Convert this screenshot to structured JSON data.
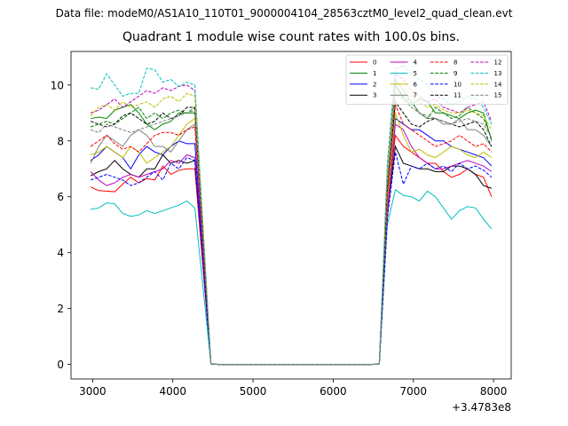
{
  "figure": {
    "suptitle": "Data file: modeM0/AS1A10_110T01_9000004104_28563cztM0_level2_quad_clean.evt"
  },
  "chart_data": {
    "type": "line",
    "title": "Quadrant 1 module wise count rates with 100.0s bins.",
    "xlabel": "",
    "ylabel": "",
    "x_offset_text": "+3.4783e8",
    "xlim": [
      2730,
      8220
    ],
    "ylim": [
      -0.52,
      11.2
    ],
    "xticks": [
      3000,
      4000,
      5000,
      6000,
      7000,
      8000
    ],
    "yticks": [
      0,
      2,
      4,
      6,
      8,
      10
    ],
    "grid": false,
    "legend": {
      "placement": "top-right",
      "ncol": 4
    },
    "x": [
      2975,
      3075,
      3175,
      3275,
      3375,
      3475,
      3575,
      3675,
      3775,
      3875,
      3975,
      4075,
      4175,
      4275,
      4375,
      4475,
      4575,
      4675,
      4775,
      4875,
      4975,
      5075,
      5175,
      5275,
      5375,
      5475,
      5575,
      5675,
      5775,
      5875,
      5975,
      6075,
      6175,
      6275,
      6375,
      6475,
      6575,
      6675,
      6775,
      6875,
      6975,
      7075,
      7175,
      7275,
      7375,
      7475,
      7575,
      7675,
      7775,
      7875,
      7975
    ],
    "series": [
      {
        "name": "0",
        "color": "#ff0000",
        "dash": "solid",
        "values": [
          6.35,
          6.22,
          6.2,
          6.18,
          6.45,
          6.7,
          6.5,
          6.65,
          6.6,
          7.1,
          6.8,
          6.95,
          7.0,
          7.0,
          3.5,
          0.02,
          0,
          0,
          0,
          0,
          0,
          0,
          0,
          0,
          0,
          0,
          0,
          0,
          0,
          0,
          0,
          0,
          0,
          0,
          0,
          0,
          0.02,
          5.5,
          8.2,
          7.8,
          7.6,
          7.4,
          7.2,
          7.2,
          6.9,
          6.7,
          6.8,
          7.0,
          6.8,
          6.7,
          6.0
        ]
      },
      {
        "name": "1",
        "color": "#008000",
        "dash": "solid",
        "values": [
          8.8,
          8.85,
          8.8,
          9.1,
          9.2,
          9.3,
          9.0,
          8.6,
          8.4,
          8.6,
          8.7,
          9.0,
          9.0,
          9.0,
          4.6,
          0.02,
          0,
          0,
          0,
          0,
          0,
          0,
          0,
          0,
          0,
          0,
          0,
          0,
          0,
          0,
          0,
          0,
          0,
          0,
          0,
          0,
          0.02,
          6.2,
          10.0,
          9.5,
          9.3,
          9.5,
          9.4,
          9.0,
          9.0,
          8.9,
          8.8,
          9.0,
          9.1,
          9.0,
          8.0
        ]
      },
      {
        "name": "2",
        "color": "#0000ff",
        "dash": "solid",
        "values": [
          7.3,
          7.5,
          7.8,
          7.6,
          7.4,
          7.0,
          7.5,
          7.8,
          7.6,
          7.5,
          7.8,
          8.0,
          7.9,
          7.9,
          4.0,
          0.02,
          0,
          0,
          0,
          0,
          0,
          0,
          0,
          0,
          0,
          0,
          0,
          0,
          0,
          0,
          0,
          0,
          0,
          0,
          0,
          0,
          0.02,
          5.8,
          8.8,
          8.6,
          8.4,
          8.4,
          8.2,
          8.0,
          8.0,
          7.8,
          7.7,
          7.6,
          7.5,
          7.4,
          7.1
        ]
      },
      {
        "name": "3",
        "color": "#000000",
        "dash": "solid",
        "values": [
          6.75,
          6.9,
          7.0,
          7.3,
          7.0,
          6.8,
          6.7,
          7.0,
          7.0,
          7.5,
          7.2,
          7.3,
          7.2,
          7.3,
          3.7,
          0.02,
          0,
          0,
          0,
          0,
          0,
          0,
          0,
          0,
          0,
          0,
          0,
          0,
          0,
          0,
          0,
          0,
          0,
          0,
          0,
          0,
          0.02,
          5.4,
          7.8,
          7.2,
          7.1,
          7.0,
          7.0,
          6.9,
          6.9,
          7.1,
          7.1,
          7.0,
          6.8,
          6.4,
          6.3
        ]
      },
      {
        "name": "4",
        "color": "#bf00bf",
        "dash": "solid",
        "values": [
          6.9,
          6.6,
          6.4,
          6.5,
          6.7,
          6.8,
          6.7,
          6.8,
          6.9,
          7.0,
          7.3,
          7.2,
          7.5,
          7.4,
          3.8,
          0.02,
          0,
          0,
          0,
          0,
          0,
          0,
          0,
          0,
          0,
          0,
          0,
          0,
          0,
          0,
          0,
          0,
          0,
          0,
          0,
          0,
          0.02,
          5.3,
          8.6,
          8.4,
          7.8,
          7.4,
          7.2,
          7.0,
          7.0,
          7.1,
          7.2,
          7.3,
          7.2,
          7.1,
          6.9
        ]
      },
      {
        "name": "5",
        "color": "#00bfbf",
        "dash": "solid",
        "values": [
          5.55,
          5.6,
          5.78,
          5.75,
          5.4,
          5.3,
          5.35,
          5.5,
          5.4,
          5.5,
          5.6,
          5.7,
          5.85,
          5.6,
          2.8,
          0.02,
          0,
          0,
          0,
          0,
          0,
          0,
          0,
          0,
          0,
          0,
          0,
          0,
          0,
          0,
          0,
          0,
          0,
          0,
          0,
          0,
          0.02,
          5.0,
          6.25,
          6.05,
          6.0,
          5.85,
          6.2,
          6.0,
          5.6,
          5.2,
          5.5,
          5.65,
          5.6,
          5.2,
          4.85
        ]
      },
      {
        "name": "6",
        "color": "#bfbf00",
        "dash": "solid",
        "values": [
          7.5,
          7.6,
          7.8,
          7.6,
          7.4,
          7.8,
          7.6,
          7.2,
          7.4,
          7.6,
          7.8,
          8.2,
          8.6,
          8.8,
          4.5,
          0.02,
          0,
          0,
          0,
          0,
          0,
          0,
          0,
          0,
          0,
          0,
          0,
          0,
          0,
          0,
          0,
          0,
          0,
          0,
          0,
          0,
          0.02,
          5.8,
          9.0,
          8.2,
          7.6,
          7.7,
          7.5,
          7.4,
          7.6,
          7.8,
          7.7,
          7.5,
          7.4,
          7.6,
          7.4
        ]
      },
      {
        "name": "7",
        "color": "#808080",
        "dash": "solid",
        "values": [
          7.2,
          7.8,
          8.2,
          8.0,
          7.8,
          8.2,
          8.4,
          8.2,
          7.8,
          7.8,
          7.6,
          8.0,
          8.4,
          8.6,
          4.4,
          0.02,
          0,
          0,
          0,
          0,
          0,
          0,
          0,
          0,
          0,
          0,
          0,
          0,
          0,
          0,
          0,
          0,
          0,
          0,
          0,
          0,
          0.02,
          6.5,
          10.2,
          9.8,
          9.4,
          9.0,
          8.8,
          8.8,
          8.6,
          8.6,
          8.8,
          8.4,
          8.4,
          8.2,
          7.8
        ]
      },
      {
        "name": "8",
        "color": "#ff0000",
        "dash": "dashed",
        "values": [
          7.8,
          8.0,
          8.2,
          7.9,
          7.7,
          7.8,
          7.6,
          7.9,
          8.2,
          8.3,
          8.3,
          8.2,
          8.4,
          8.5,
          4.3,
          0.02,
          0,
          0,
          0,
          0,
          0,
          0,
          0,
          0,
          0,
          0,
          0,
          0,
          0,
          0,
          0,
          0,
          0,
          0,
          0,
          0,
          0.02,
          6.0,
          9.3,
          8.6,
          8.4,
          8.2,
          8.0,
          7.8,
          7.9,
          8.0,
          8.2,
          8.0,
          7.8,
          7.9,
          7.6
        ]
      },
      {
        "name": "9",
        "color": "#008000",
        "dash": "dashed",
        "values": [
          8.5,
          8.6,
          8.7,
          8.6,
          8.8,
          9.0,
          9.2,
          8.8,
          9.0,
          8.8,
          9.0,
          9.1,
          9.0,
          9.2,
          4.7,
          0.02,
          0,
          0,
          0,
          0,
          0,
          0,
          0,
          0,
          0,
          0,
          0,
          0,
          0,
          0,
          0,
          0,
          0,
          0,
          0,
          0,
          0.02,
          6.6,
          10.0,
          9.6,
          9.4,
          9.0,
          8.8,
          9.2,
          9.0,
          8.8,
          8.9,
          9.2,
          9.0,
          8.8,
          8.1
        ]
      },
      {
        "name": "10",
        "color": "#0000ff",
        "dash": "dashed",
        "values": [
          6.6,
          6.7,
          6.8,
          6.7,
          6.6,
          6.4,
          6.5,
          6.7,
          6.9,
          6.6,
          7.2,
          7.0,
          7.4,
          7.3,
          3.7,
          0.02,
          0,
          0,
          0,
          0,
          0,
          0,
          0,
          0,
          0,
          0,
          0,
          0,
          0,
          0,
          0,
          0,
          0,
          0,
          0,
          0,
          0.02,
          5.2,
          7.6,
          6.45,
          7.1,
          7.0,
          7.2,
          7.0,
          7.1,
          6.9,
          7.2,
          7.0,
          7.1,
          6.95,
          6.7
        ]
      },
      {
        "name": "11",
        "color": "#000000",
        "dash": "dashed",
        "values": [
          8.7,
          8.6,
          8.5,
          8.6,
          8.9,
          9.0,
          8.8,
          8.6,
          8.7,
          9.0,
          8.8,
          8.9,
          9.2,
          9.2,
          4.6,
          0.02,
          0,
          0,
          0,
          0,
          0,
          0,
          0,
          0,
          0,
          0,
          0,
          0,
          0,
          0,
          0,
          0,
          0,
          0,
          0,
          0,
          0.02,
          6.3,
          9.4,
          9.0,
          8.6,
          8.5,
          8.7,
          8.8,
          8.7,
          8.6,
          8.5,
          8.6,
          8.7,
          8.4,
          7.8
        ]
      },
      {
        "name": "12",
        "color": "#bf00bf",
        "dash": "dashed",
        "values": [
          9.0,
          9.1,
          9.3,
          9.5,
          9.2,
          9.4,
          9.6,
          9.8,
          9.7,
          9.9,
          9.8,
          9.95,
          10.0,
          9.8,
          5.0,
          0.02,
          0,
          0,
          0,
          0,
          0,
          0,
          0,
          0,
          0,
          0,
          0,
          0,
          0,
          0,
          0,
          0,
          0,
          0,
          0,
          0,
          0.02,
          7.0,
          10.4,
          10.2,
          9.8,
          9.6,
          9.4,
          9.5,
          9.2,
          9.1,
          9.0,
          9.2,
          9.3,
          9.4,
          8.7
        ]
      },
      {
        "name": "13",
        "color": "#00bfbf",
        "dash": "dashed",
        "values": [
          9.9,
          9.85,
          10.4,
          10.0,
          9.6,
          9.7,
          9.7,
          10.6,
          10.55,
          10.1,
          10.2,
          9.95,
          10.1,
          10.0,
          5.0,
          0.02,
          0,
          0,
          0,
          0,
          0,
          0,
          0,
          0,
          0,
          0,
          0,
          0,
          0,
          0,
          0,
          0,
          0,
          0,
          0,
          0,
          0.02,
          7.2,
          10.6,
          10.7,
          10.4,
          10.2,
          10.0,
          9.6,
          9.5,
          9.3,
          9.4,
          9.6,
          9.5,
          9.2,
          8.6
        ]
      },
      {
        "name": "14",
        "color": "#bfbf00",
        "dash": "dashed",
        "values": [
          8.9,
          9.2,
          9.3,
          9.1,
          9.4,
          9.2,
          9.3,
          9.4,
          9.2,
          9.5,
          9.6,
          9.4,
          9.7,
          9.6,
          4.9,
          0.02,
          0,
          0,
          0,
          0,
          0,
          0,
          0,
          0,
          0,
          0,
          0,
          0,
          0,
          0,
          0,
          0,
          0,
          0,
          0,
          0,
          0.02,
          6.8,
          10.1,
          9.9,
          9.6,
          9.4,
          9.2,
          9.3,
          9.1,
          9.0,
          9.0,
          9.1,
          9.0,
          8.9,
          8.4
        ]
      },
      {
        "name": "15",
        "color": "#808080",
        "dash": "dashed",
        "values": [
          8.4,
          8.3,
          8.6,
          8.5,
          8.4,
          8.3,
          8.4,
          8.5,
          8.6,
          8.7,
          8.8,
          8.9,
          9.0,
          9.1,
          4.6,
          0.02,
          0,
          0,
          0,
          0,
          0,
          0,
          0,
          0,
          0,
          0,
          0,
          0,
          0,
          0,
          0,
          0,
          0,
          0,
          0,
          0,
          0.02,
          6.4,
          9.7,
          9.5,
          9.2,
          9.0,
          8.9,
          8.8,
          8.7,
          8.6,
          8.7,
          8.8,
          8.7,
          8.6,
          8.1
        ]
      }
    ]
  }
}
